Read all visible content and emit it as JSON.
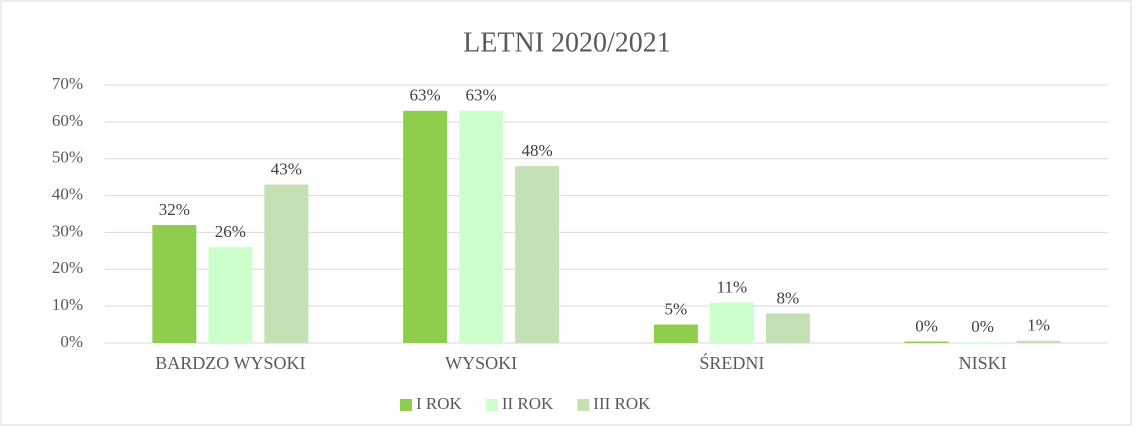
{
  "chart_data": {
    "type": "bar",
    "title": "LETNI 2020/2021",
    "categories": [
      "BARDZO WYSOKI",
      "WYSOKI",
      "ŚREDNI",
      "NISKI"
    ],
    "series": [
      {
        "name": "I ROK",
        "color": "#8fce4d",
        "values": [
          32,
          63,
          5,
          0.4
        ],
        "value_labels": [
          "32%",
          "63%",
          "5%",
          "0%"
        ]
      },
      {
        "name": "II ROK",
        "color": "#ccffcc",
        "values": [
          26,
          63,
          11,
          0.2
        ],
        "value_labels": [
          "26%",
          "63%",
          "11%",
          "0%"
        ]
      },
      {
        "name": "III ROK",
        "color": "#c5e0b4",
        "values": [
          43,
          48,
          8,
          0.6
        ],
        "value_labels": [
          "43%",
          "48%",
          "8%",
          "1%"
        ]
      }
    ],
    "ylim": [
      0,
      70
    ],
    "yticks": [
      {
        "value": 0,
        "label": "0%"
      },
      {
        "value": 10,
        "label": "10%"
      },
      {
        "value": 20,
        "label": "20%"
      },
      {
        "value": 30,
        "label": "30%"
      },
      {
        "value": 40,
        "label": "40%"
      },
      {
        "value": 50,
        "label": "50%"
      },
      {
        "value": 60,
        "label": "60%"
      },
      {
        "value": 70,
        "label": "70%"
      }
    ],
    "grid": true,
    "legend": "bottom"
  }
}
